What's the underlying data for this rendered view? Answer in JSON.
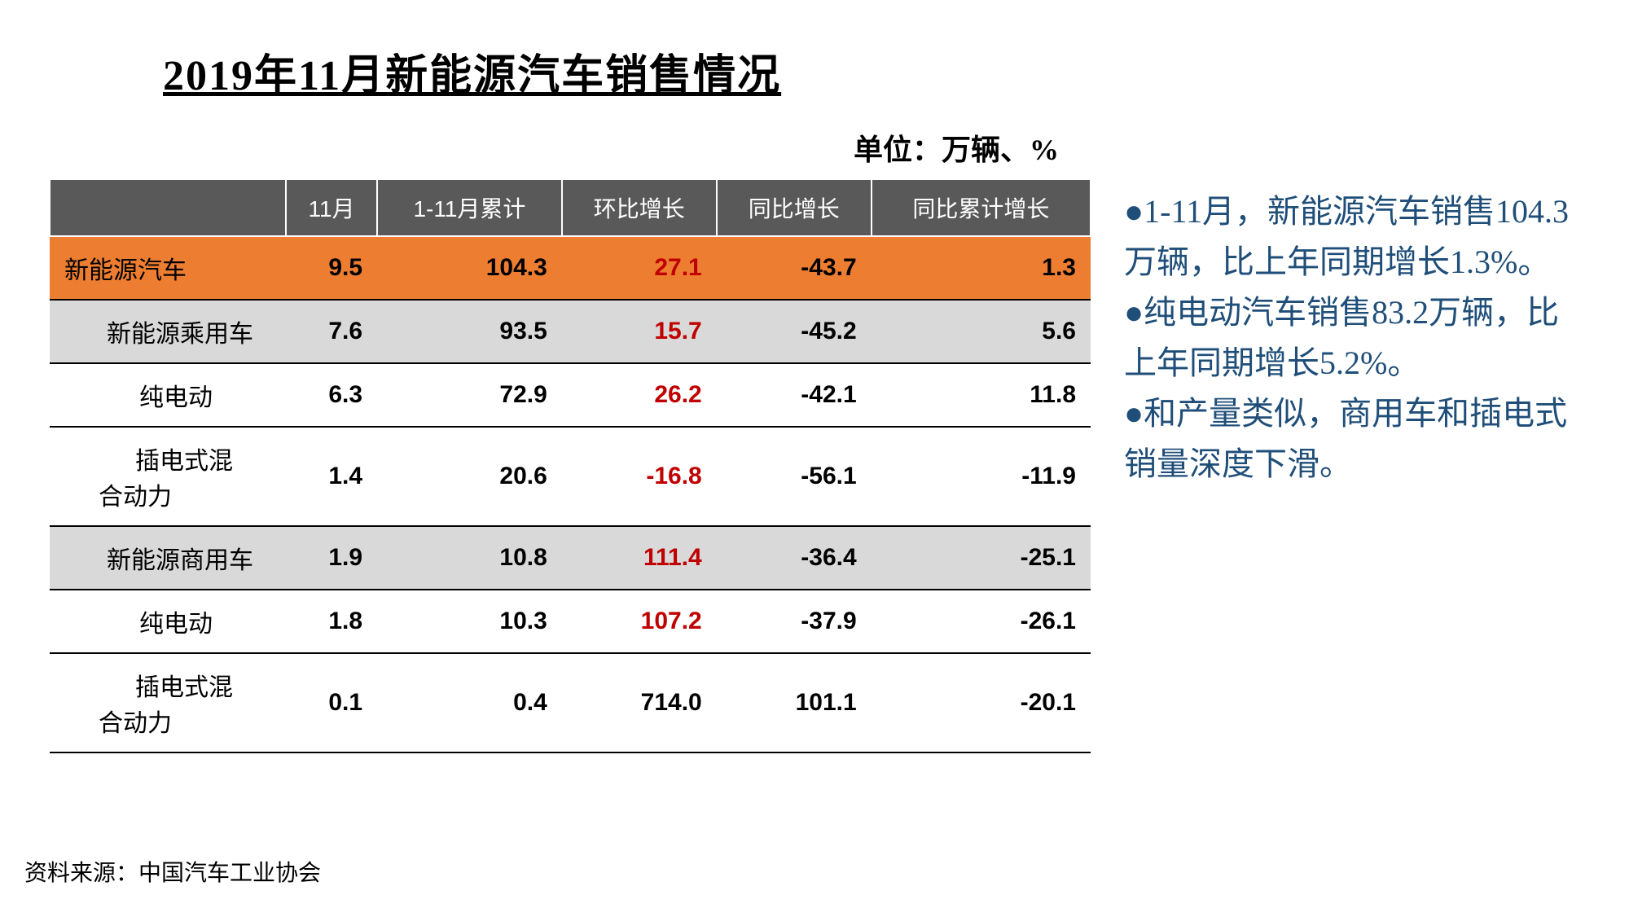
{
  "title": "2019年11月新能源汽车销售情况",
  "unit_label": "单位：万辆、%",
  "source": "资料来源：中国汽车工业协会",
  "table": {
    "columns": [
      "",
      "11月",
      "1-11月累计",
      "环比增长",
      "同比增长",
      "同比累计增长"
    ],
    "header_bg": "#595959",
    "header_text_color": "#ffffff",
    "highlight_bg": "#ed7d31",
    "alt_bg": "#d9d9d9",
    "red_color": "#c00000",
    "rows": [
      {
        "label": "新能源汽车",
        "indent": 0,
        "style": "highlight",
        "nov": "9.5",
        "cum": "104.3",
        "mom": "27.1",
        "mom_red": true,
        "yoy": "-43.7",
        "yoy_cum": "1.3"
      },
      {
        "label": "新能源乘用车",
        "indent": 1,
        "style": "gray",
        "nov": "7.6",
        "cum": "93.5",
        "mom": "15.7",
        "mom_red": true,
        "yoy": "-45.2",
        "yoy_cum": "5.6"
      },
      {
        "label": "纯电动",
        "indent": 2,
        "style": "white",
        "nov": "6.3",
        "cum": "72.9",
        "mom": "26.2",
        "mom_red": true,
        "yoy": "-42.1",
        "yoy_cum": "11.8"
      },
      {
        "label": "插电式混合动力",
        "indent": 3,
        "style": "white",
        "nov": "1.4",
        "cum": "20.6",
        "mom": "-16.8",
        "mom_red": true,
        "yoy": "-56.1",
        "yoy_cum": "-11.9"
      },
      {
        "label": "新能源商用车",
        "indent": 1,
        "style": "gray",
        "nov": "1.9",
        "cum": "10.8",
        "mom": "111.4",
        "mom_red": true,
        "yoy": "-36.4",
        "yoy_cum": "-25.1"
      },
      {
        "label": "纯电动",
        "indent": 2,
        "style": "white",
        "nov": "1.8",
        "cum": "10.3",
        "mom": "107.2",
        "mom_red": true,
        "yoy": "-37.9",
        "yoy_cum": "-26.1"
      },
      {
        "label": "插电式混合动力",
        "indent": 3,
        "style": "white",
        "nov": "0.1",
        "cum": "0.4",
        "mom": "714.0",
        "mom_red": false,
        "yoy": "101.1",
        "yoy_cum": "-20.1"
      }
    ]
  },
  "bullets": [
    "1-11月，新能源汽车销售104.3万辆，比上年同期增长1.3%。",
    "纯电动汽车销售83.2万辆，比上年同期增长5.2%。",
    "和产量类似，商用车和插电式销量深度下滑。"
  ],
  "bullet_color": "#1f4e79"
}
